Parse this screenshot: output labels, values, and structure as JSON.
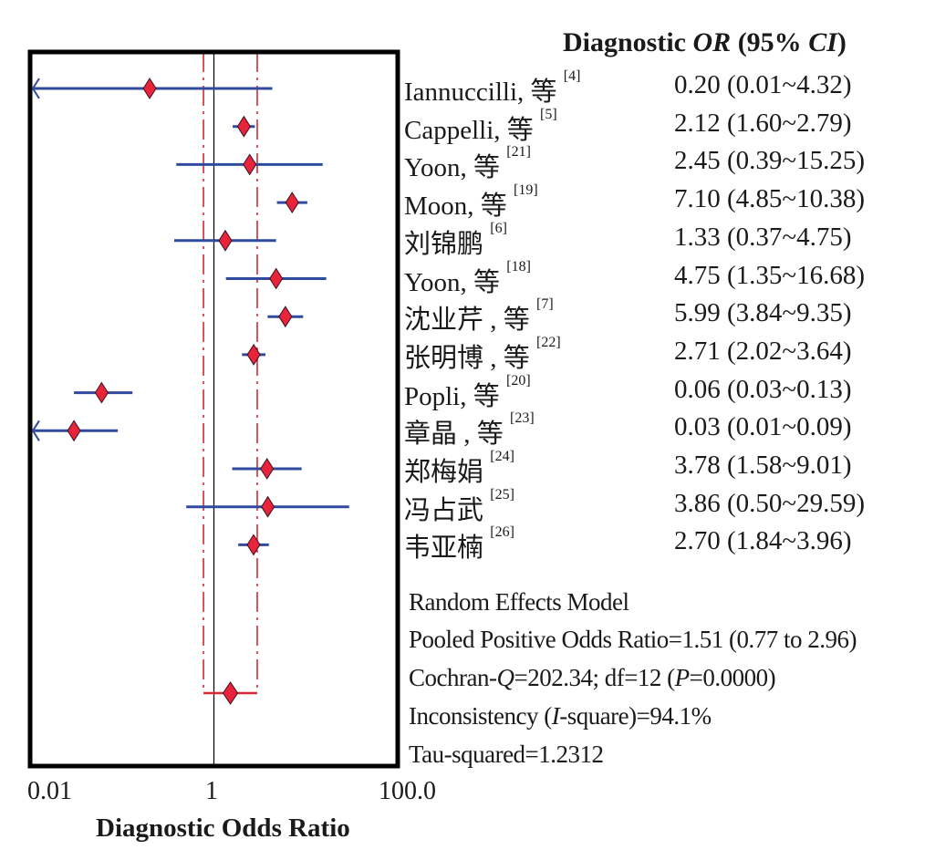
{
  "chart_data": {
    "type": "forest",
    "column_header": {
      "prefix": "Diagnostic ",
      "or": "OR",
      "mid": " (95% ",
      "ci": "CI",
      "suffix": ")"
    },
    "studies": [
      {
        "name": "Iannuccilli, 等",
        "ref": "[4]",
        "or": 0.2,
        "lower": 0.01,
        "upper": 4.32,
        "ci_text": "0.20 (0.01~4.32)"
      },
      {
        "name": "Cappelli, 等",
        "ref": "[5]",
        "or": 2.12,
        "lower": 1.6,
        "upper": 2.79,
        "ci_text": "2.12 (1.60~2.79)"
      },
      {
        "name": "Yoon, 等",
        "ref": "[21]",
        "or": 2.45,
        "lower": 0.39,
        "upper": 15.25,
        "ci_text": "2.45 (0.39~15.25)"
      },
      {
        "name": "Moon, 等",
        "ref": "[19]",
        "or": 7.1,
        "lower": 4.85,
        "upper": 10.38,
        "ci_text": "7.10 (4.85~10.38)"
      },
      {
        "name": "刘锦鹏",
        "ref": "[6]",
        "or": 1.33,
        "lower": 0.37,
        "upper": 4.75,
        "ci_text": "1.33 (0.37~4.75)"
      },
      {
        "name": "Yoon, 等",
        "ref": "[18]",
        "or": 4.75,
        "lower": 1.35,
        "upper": 16.68,
        "ci_text": "4.75 (1.35~16.68)"
      },
      {
        "name": "沈业芹 , 等",
        "ref": "[7]",
        "or": 5.99,
        "lower": 3.84,
        "upper": 9.35,
        "ci_text": "5.99 (3.84~9.35)"
      },
      {
        "name": "张明博 , 等",
        "ref": "[22]",
        "or": 2.71,
        "lower": 2.02,
        "upper": 3.64,
        "ci_text": " 2.71 (2.02~3.64)"
      },
      {
        "name": "Popli, 等",
        "ref": "[20]",
        "or": 0.06,
        "lower": 0.03,
        "upper": 0.13,
        "ci_text": "0.06 (0.03~0.13)"
      },
      {
        "name": "章晶 , 等",
        "ref": "[23]",
        "or": 0.03,
        "lower": 0.01,
        "upper": 0.09,
        "ci_text": "0.03 (0.01~0.09)"
      },
      {
        "name": "郑梅娟",
        "ref": "[24]",
        "or": 3.78,
        "lower": 1.58,
        "upper": 9.01,
        "ci_text": "3.78 (1.58~9.01)"
      },
      {
        "name": "冯占武",
        "ref": "[25]",
        "or": 3.86,
        "lower": 0.5,
        "upper": 29.59,
        "ci_text": "3.86 (0.50~29.59)"
      },
      {
        "name": "韦亚楠",
        "ref": "[26]",
        "or": 2.7,
        "lower": 1.84,
        "upper": 3.96,
        "ci_text": "2.70 (1.84~3.96)"
      }
    ],
    "pooled": {
      "or": 1.51,
      "lower": 0.77,
      "upper": 2.96
    },
    "stats": {
      "model": "Random Effects Model",
      "pooled_text": "Pooled Positive Odds Ratio=1.51 (0.77 to 2.96)",
      "cochran": {
        "a": "Cochran-",
        "q": "Q",
        "b": "=202.34; df=12 (",
        "p": "P",
        "c": "=0.0000)"
      },
      "inconsistency": {
        "a": "Inconsistency (",
        "i": "I",
        "b": "-square)=94.1%"
      },
      "tau": "Tau-squared=1.2312"
    },
    "x_scale": "log",
    "xlim": [
      0.01,
      100
    ],
    "x_ticks": [
      {
        "value": 0.01,
        "label": "0.01"
      },
      {
        "value": 1,
        "label": "1"
      },
      {
        "value": 100,
        "label": "100.0"
      }
    ],
    "xlabel": "Diagnostic Odds Ratio",
    "colors": {
      "ci_line": "#2f4a9e",
      "marker": "#e8243a",
      "pooled_lines": "#d42a35",
      "reference_line": "#000000",
      "frame": "#000000"
    }
  }
}
